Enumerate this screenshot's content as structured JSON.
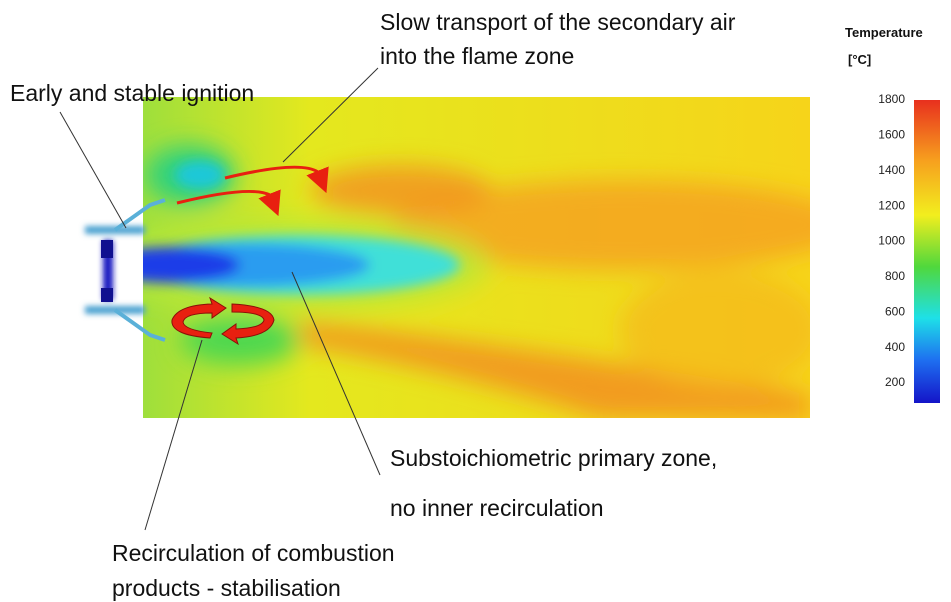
{
  "annotations": {
    "secondary_air": [
      "Slow transport of the secondary air",
      "into the flame zone"
    ],
    "ignition": "Early and stable ignition",
    "primary_zone": [
      "Substoichiometric primary zone,",
      "no inner recirculation"
    ],
    "recirculation": [
      "Recirculation of combustion",
      "products - stabilisation"
    ]
  },
  "colorbar": {
    "title": "Temperature",
    "unit": "[°C]",
    "ticks": [
      1800,
      1600,
      1400,
      1200,
      1000,
      800,
      600,
      400,
      200
    ]
  }
}
